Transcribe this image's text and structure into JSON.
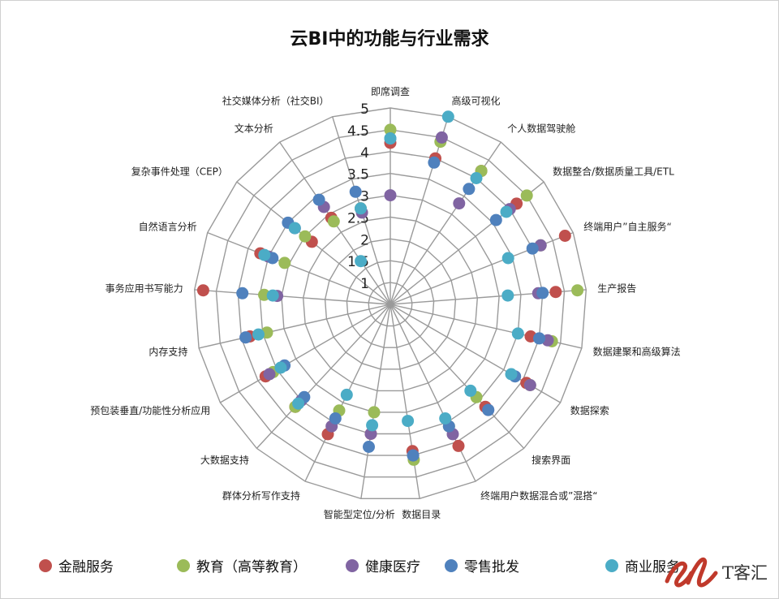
{
  "chart_data": {
    "type": "radar",
    "title": "云BI中的功能与行业需求",
    "radial_range": [
      0.5,
      5
    ],
    "radial_ticks": [
      "1",
      "1.5",
      "2",
      "2.5",
      "3",
      "3.5",
      "4",
      "4.5",
      "5"
    ],
    "grid": true,
    "legend_position": "bottom",
    "categories": [
      "即席调查",
      "高级可视化",
      "个人数据驾驶舱",
      "数据整合/数据质量工具/ETL",
      "终端用户”自主服务“",
      "生产报告",
      "数据建聚和高级算法",
      "数据探索",
      "搜索界面",
      "终端用户数据混合或”混搭“",
      "数据目录",
      "智能型定位/分析",
      "群体分析写作支持",
      "大数据支持",
      "预包装垂直/功能性分析应用",
      "内存支持",
      "事务应用书写能力",
      "自然语言分析",
      "复杂事件处理（CEP）",
      "文本分析",
      "社交媒体分析（社交BI）"
    ],
    "series": [
      {
        "name": "金融服务",
        "color": "#c0504d",
        "values": [
          4.2,
          4.0,
          4.2,
          4.2,
          4.8,
          4.3,
          3.8,
          4.1,
          3.7,
          4.1,
          3.9,
          3.5,
          3.8,
          3.7,
          3.8,
          3.8,
          4.8,
          3.7,
          2.8,
          2.9,
          2.8
        ]
      },
      {
        "name": "教育（高等教育）",
        "color": "#9bbb59",
        "values": [
          4.5,
          4.4,
          4.2,
          4.5,
          4.2,
          4.8,
          4.3,
          4.2,
          3.4,
          3.6,
          4.1,
          3.0,
          3.2,
          3.7,
          3.6,
          3.4,
          3.4,
          3.1,
          3.0,
          2.8,
          2.8
        ]
      },
      {
        "name": "健康医疗",
        "color": "#8064a2",
        "values": [
          3.0,
          4.5,
          3.3,
          4.0,
          4.2,
          3.9,
          4.2,
          4.2,
          3.8,
          3.8,
          4.0,
          3.5,
          3.6,
          3.5,
          3.7,
          3.9,
          3.1,
          3.5,
          3.3,
          3.2,
          2.7
        ]
      },
      {
        "name": "零售批发",
        "color": "#4f81bd",
        "values": [
          4.3,
          3.9,
          3.7,
          3.6,
          4.0,
          4.0,
          4.0,
          3.8,
          3.8,
          3.6,
          4.0,
          3.8,
          3.4,
          3.4,
          3.3,
          3.9,
          3.9,
          3.4,
          3.5,
          3.4,
          3.2
        ]
      },
      {
        "name": "商业服务",
        "color": "#4bacc6",
        "values": [
          4.3,
          5.0,
          4.0,
          3.9,
          3.4,
          3.2,
          3.5,
          3.7,
          3.2,
          3.4,
          3.2,
          3.3,
          2.8,
          3.6,
          3.4,
          3.6,
          3.2,
          3.6,
          3.3,
          1.7,
          2.8
        ]
      }
    ]
  },
  "brand": {
    "mark": "el",
    "text": "T客汇"
  }
}
